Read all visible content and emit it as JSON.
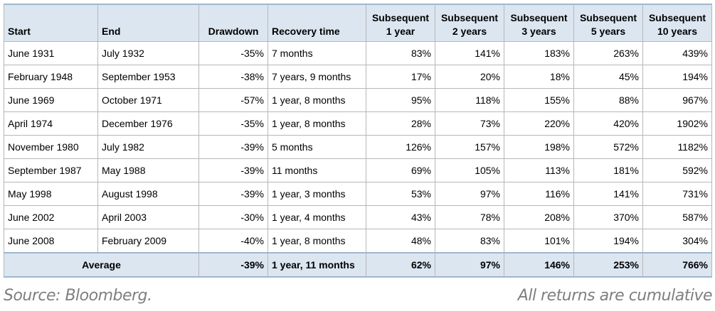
{
  "table": {
    "headers": {
      "start": "Start",
      "end": "End",
      "drawdown": "Drawdown",
      "recovery": "Recovery time",
      "s1": [
        "Subsequent",
        "1 year"
      ],
      "s2": [
        "Subsequent",
        "2 years"
      ],
      "s3": [
        "Subsequent",
        "3 years"
      ],
      "s5": [
        "Subsequent",
        "5 years"
      ],
      "s10": [
        "Subsequent",
        "10 years"
      ]
    },
    "rows": [
      [
        "June 1931",
        "July 1932",
        "-35%",
        "7 months",
        "83%",
        "141%",
        "183%",
        "263%",
        "439%"
      ],
      [
        "February 1948",
        "September 1953",
        "-38%",
        "7 years, 9 months",
        "17%",
        "20%",
        "18%",
        "45%",
        "194%"
      ],
      [
        "June 1969",
        "October 1971",
        "-57%",
        "1 year, 8 months",
        "95%",
        "118%",
        "155%",
        "88%",
        "967%"
      ],
      [
        "April 1974",
        "December 1976",
        "-35%",
        "1 year, 8 months",
        "28%",
        "73%",
        "220%",
        "420%",
        "1902%"
      ],
      [
        "November 1980",
        "July 1982",
        "-39%",
        "5 months",
        "126%",
        "157%",
        "198%",
        "572%",
        "1182%"
      ],
      [
        "September 1987",
        "May 1988",
        "-39%",
        "11 months",
        "69%",
        "105%",
        "113%",
        "181%",
        "592%"
      ],
      [
        "May 1998",
        "August 1998",
        "-39%",
        "1 year, 3 months",
        "53%",
        "97%",
        "116%",
        "141%",
        "731%"
      ],
      [
        "June 2002",
        "April 2003",
        "-30%",
        "1 year, 4 months",
        "43%",
        "78%",
        "208%",
        "370%",
        "587%"
      ],
      [
        "June 2008",
        "February 2009",
        "-40%",
        "1 year, 8 months",
        "48%",
        "83%",
        "101%",
        "194%",
        "304%"
      ]
    ],
    "average": {
      "label": "Average",
      "drawdown": "-39%",
      "recovery": "1 year, 11 months",
      "s1": "62%",
      "s2": "97%",
      "s3": "146%",
      "s5": "253%",
      "s10": "766%"
    }
  },
  "footer": {
    "source": "Source: Bloomberg.",
    "note": "All returns are cumulative"
  },
  "colors": {
    "header_bg": "#dce6f1",
    "border": "#b7b7b7",
    "footer_text": "#7f7f7f"
  }
}
